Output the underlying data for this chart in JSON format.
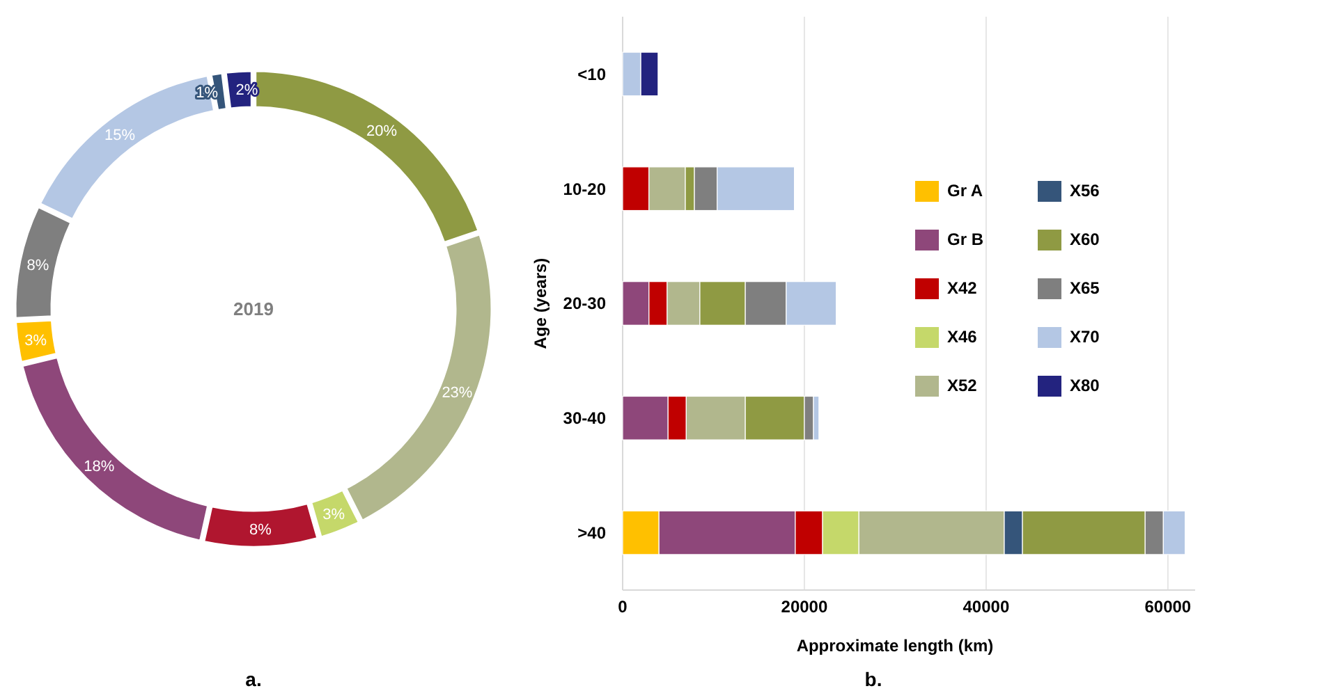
{
  "chart_data": [
    {
      "type": "donut",
      "title": "2019",
      "categories": [
        null,
        null,
        null,
        null,
        null,
        null,
        null,
        null,
        null,
        null
      ],
      "values": [
        20,
        23,
        3,
        8,
        18,
        3,
        8,
        15,
        1,
        2
      ],
      "value_labels": [
        "20%",
        "23%",
        "3%",
        "8%",
        "18%",
        "3%",
        "8%",
        "15%",
        "1%",
        "2%"
      ],
      "colors": [
        "#8f9a43",
        "#b1b78d",
        "#c5d86a",
        "#b0162f",
        "#8e477a",
        "#ffc000",
        "#7f7f7f",
        "#b4c7e4",
        "#35557a",
        "#23237f"
      ],
      "annotations": [
        "a."
      ]
    },
    {
      "type": "bar",
      "orientation": "horizontal",
      "stacked": true,
      "categories": [
        "<10",
        "10-20",
        "20-30",
        "30-40",
        ">40"
      ],
      "xlabel": "Approximate length (km)",
      "ylabel": "Age (years)",
      "xlim": [
        0,
        63000
      ],
      "xticks": [
        0,
        20000,
        40000,
        60000
      ],
      "grid": "x",
      "legend": "right",
      "annotations": [
        "b."
      ],
      "series": [
        {
          "name": "Gr A",
          "color": "#ffc000",
          "values": [
            null,
            null,
            null,
            null,
            4000
          ]
        },
        {
          "name": "Gr B",
          "color": "#8e477a",
          "values": [
            null,
            null,
            2900,
            5000,
            15000
          ]
        },
        {
          "name": "X42",
          "color": "#c00000",
          "values": [
            null,
            2900,
            2000,
            2000,
            3000
          ]
        },
        {
          "name": "X46",
          "color": "#c5d86a",
          "values": [
            null,
            null,
            null,
            null,
            4000
          ]
        },
        {
          "name": "X52",
          "color": "#b1b78d",
          "values": [
            null,
            4000,
            3600,
            6500,
            16000
          ]
        },
        {
          "name": "X56",
          "color": "#35557a",
          "values": [
            null,
            null,
            null,
            null,
            2000
          ]
        },
        {
          "name": "X60",
          "color": "#8f9a43",
          "values": [
            null,
            1000,
            5000,
            6500,
            13500
          ]
        },
        {
          "name": "X65",
          "color": "#7f7f7f",
          "values": [
            null,
            2500,
            4500,
            1000,
            2000
          ]
        },
        {
          "name": "X70",
          "color": "#b4c7e4",
          "values": [
            2000,
            8500,
            5500,
            600,
            2400
          ]
        },
        {
          "name": "X80",
          "color": "#23237f",
          "values": [
            1900,
            null,
            null,
            null,
            null
          ]
        }
      ]
    }
  ]
}
